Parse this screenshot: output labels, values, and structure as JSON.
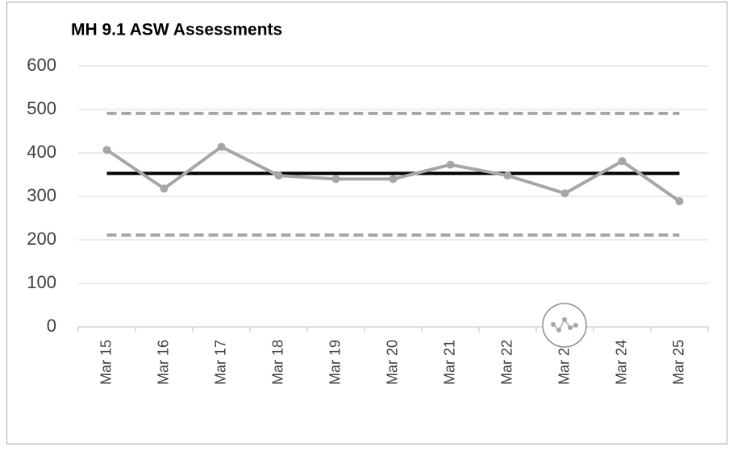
{
  "chart_data": {
    "type": "line",
    "title": "MH 9.1 ASW Assessments",
    "categories": [
      "Mar 15",
      "Mar 16",
      "Mar 17",
      "Mar 18",
      "Mar 19",
      "Mar 20",
      "Mar 21",
      "Mar 22",
      "Mar 23",
      "Mar 24",
      "Mar 25"
    ],
    "series": [
      {
        "color": "#a6a6a6",
        "dashed": true,
        "markers": false,
        "values": [
          491,
          491,
          491,
          491,
          491,
          491,
          491,
          491,
          491,
          491,
          491
        ]
      },
      {
        "color": "#a6a6a6",
        "dashed": true,
        "markers": false,
        "values": [
          211,
          211,
          211,
          211,
          211,
          211,
          211,
          211,
          211,
          211,
          211
        ]
      },
      {
        "color": "#000000",
        "dashed": false,
        "markers": false,
        "values": [
          353,
          353,
          353,
          353,
          353,
          353,
          353,
          353,
          353,
          353,
          353
        ]
      },
      {
        "color": "#a6a6a6",
        "dashed": false,
        "markers": true,
        "values": [
          407,
          318,
          414,
          348,
          340,
          340,
          373,
          348,
          307,
          381,
          289
        ]
      }
    ],
    "ylim": [
      0,
      600
    ],
    "yticks": [
      0,
      100,
      200,
      300,
      400,
      500,
      600
    ],
    "grid": true
  }
}
